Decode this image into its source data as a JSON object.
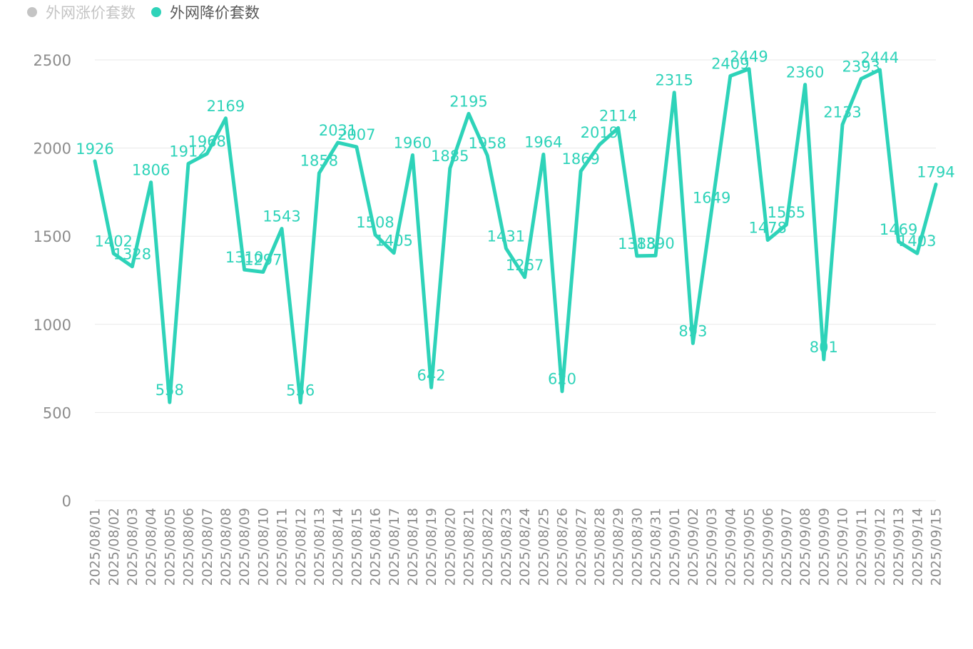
{
  "legend": [
    {
      "label": "外网涨价套数",
      "color": "#c4c4c4",
      "active": false
    },
    {
      "label": "外网降价套数",
      "color": "#2ed3b9",
      "active": true
    }
  ],
  "chart_data": {
    "type": "line",
    "categories": [
      "2025/08/01",
      "2025/08/02",
      "2025/08/03",
      "2025/08/04",
      "2025/08/05",
      "2025/08/06",
      "2025/08/07",
      "2025/08/08",
      "2025/08/09",
      "2025/08/10",
      "2025/08/11",
      "2025/08/12",
      "2025/08/13",
      "2025/08/14",
      "2025/08/15",
      "2025/08/16",
      "2025/08/17",
      "2025/08/18",
      "2025/08/19",
      "2025/08/20",
      "2025/08/21",
      "2025/08/22",
      "2025/08/23",
      "2025/08/24",
      "2025/08/25",
      "2025/08/26",
      "2025/08/27",
      "2025/08/28",
      "2025/08/29",
      "2025/08/30",
      "2025/08/31",
      "2025/09/01",
      "2025/09/02",
      "2025/09/03",
      "2025/09/04",
      "2025/09/05",
      "2025/09/06",
      "2025/09/07",
      "2025/09/08",
      "2025/09/09",
      "2025/09/10",
      "2025/09/11",
      "2025/09/12",
      "2025/09/13",
      "2025/09/14",
      "2025/09/15"
    ],
    "series": [
      {
        "name": "外网降价套数",
        "color": "#2ed3b9",
        "values": [
          1926,
          1402,
          1328,
          1806,
          558,
          1912,
          1968,
          2169,
          1310,
          1297,
          1543,
          556,
          1858,
          2031,
          2007,
          1508,
          1405,
          1960,
          642,
          1885,
          2195,
          1958,
          1431,
          1267,
          1964,
          620,
          1869,
          2019,
          2114,
          1388,
          1390,
          2315,
          893,
          1649,
          2409,
          2449,
          1478,
          1565,
          2360,
          801,
          2133,
          2393,
          2444,
          1469,
          1403,
          1794
        ]
      }
    ],
    "yticks": [
      0,
      500,
      1000,
      1500,
      2000,
      2500
    ],
    "ylim": [
      0,
      2500
    ],
    "grid": true,
    "legend_position": "top-left"
  }
}
